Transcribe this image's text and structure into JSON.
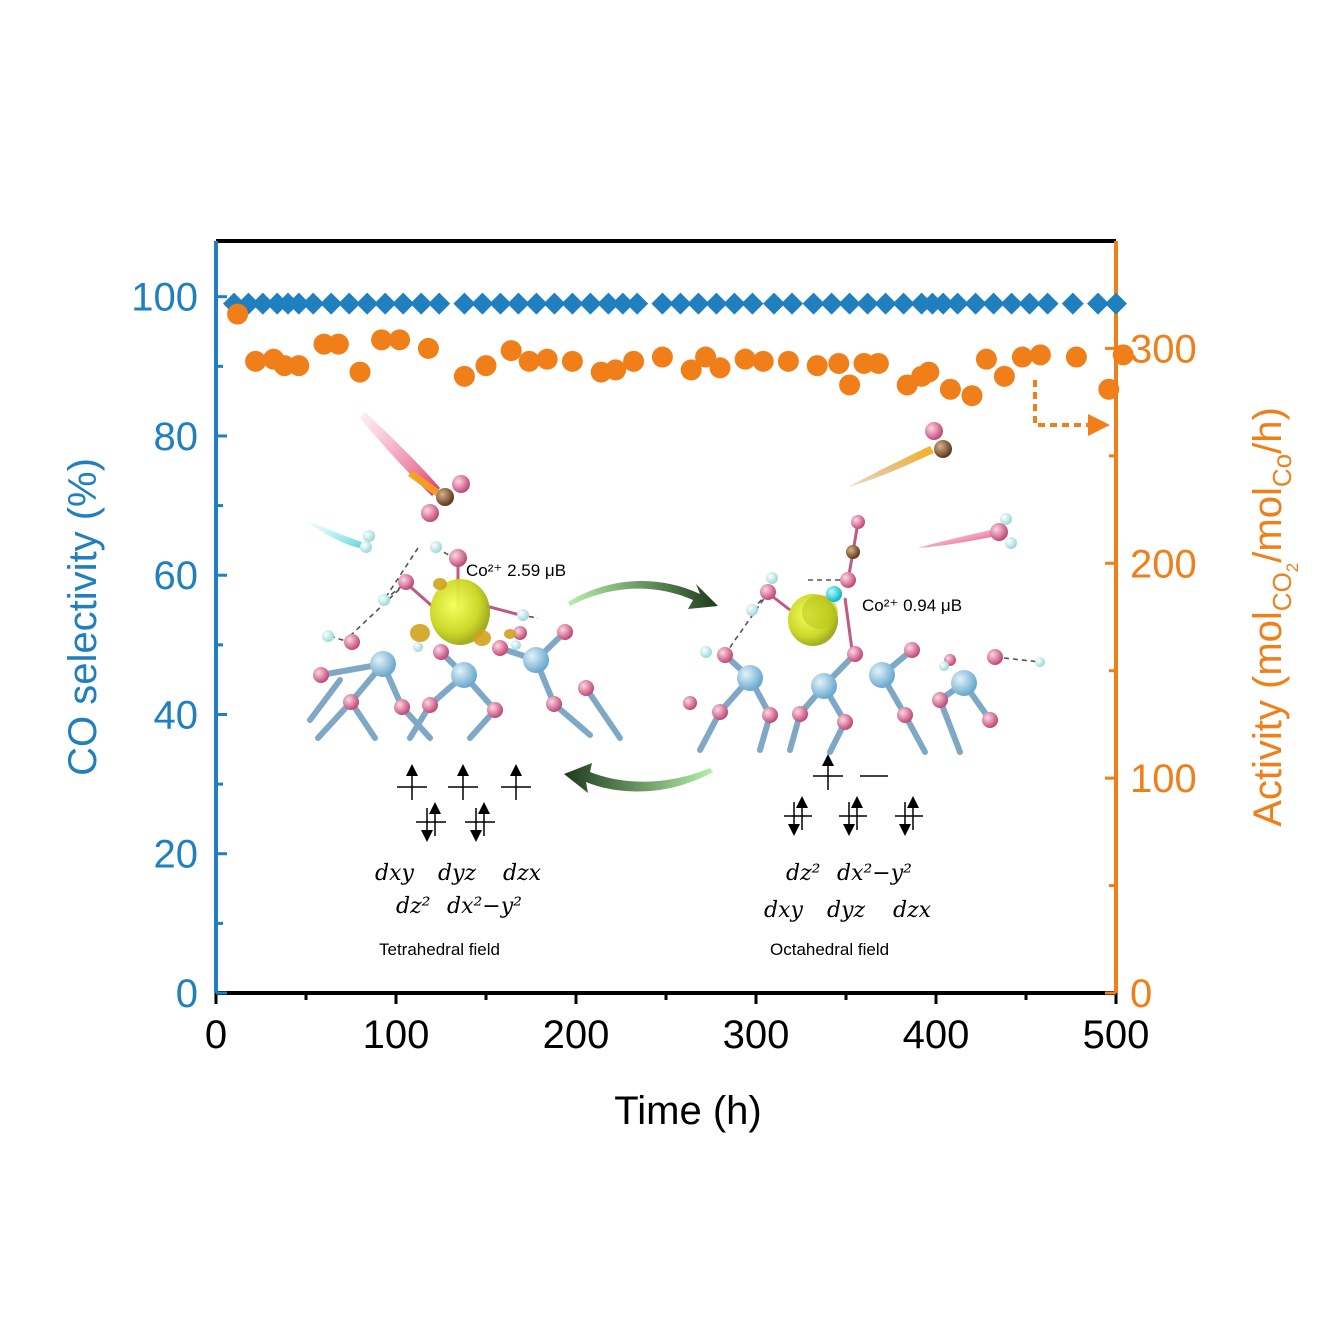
{
  "chart_data": {
    "type": "scatter",
    "xlabel": "Time (h)",
    "ylabel_left": "CO selectivity (%)",
    "ylabel_right_parts": [
      "Activity (mol",
      "CO",
      "2",
      "/mol",
      "Co",
      "/h)"
    ],
    "xlim": [
      0,
      500
    ],
    "ylim_left": [
      0,
      108
    ],
    "ylim_right": [
      0,
      350
    ],
    "x_ticks": [
      "0",
      "100",
      "200",
      "300",
      "400",
      "500"
    ],
    "y_ticks_left": [
      "0",
      "20",
      "40",
      "60",
      "80",
      "100"
    ],
    "y_ticks_right": [
      "0",
      "100",
      "200",
      "300"
    ],
    "series": [
      {
        "axis": "left",
        "marker": "diamond",
        "color": "#1f7fbf",
        "x": [
          10,
          18,
          26,
          34,
          40,
          46,
          54,
          64,
          74,
          84,
          94,
          104,
          114,
          124,
          138,
          148,
          158,
          168,
          178,
          188,
          198,
          208,
          218,
          226,
          234,
          248,
          258,
          268,
          278,
          288,
          298,
          310,
          320,
          332,
          342,
          352,
          362,
          372,
          382,
          392,
          398,
          404,
          412,
          422,
          432,
          442,
          452,
          462,
          476,
          490,
          500
        ],
        "y": [
          99,
          99,
          99,
          99,
          99,
          99,
          99,
          99,
          99,
          99,
          99,
          99,
          99,
          99,
          99,
          99,
          99,
          99,
          99,
          99,
          99,
          99,
          99,
          99,
          99,
          99,
          99,
          99,
          99,
          99,
          99,
          99,
          99,
          99,
          99,
          99,
          99,
          99,
          99,
          99,
          99,
          99,
          99,
          99,
          99,
          99,
          99,
          99,
          99,
          99,
          99
        ]
      },
      {
        "axis": "right",
        "marker": "circle",
        "color": "#f07f1a",
        "x": [
          12,
          22,
          32,
          38,
          46,
          60,
          68,
          80,
          92,
          102,
          118,
          138,
          150,
          164,
          174,
          184,
          198,
          214,
          222,
          232,
          248,
          264,
          272,
          280,
          294,
          304,
          318,
          334,
          346,
          352,
          360,
          368,
          384,
          392,
          396,
          408,
          420,
          428,
          438,
          448,
          458,
          478,
          496,
          504
        ],
        "y": [
          316,
          294,
          295,
          292,
          292,
          302,
          302,
          289,
          304,
          304,
          300,
          287,
          292,
          299,
          294,
          295,
          294,
          289,
          290,
          294,
          296,
          290,
          296,
          291,
          295,
          294,
          294,
          292,
          293,
          283,
          293,
          293,
          283,
          287,
          289,
          281,
          278,
          295,
          287,
          296,
          297,
          296,
          281,
          297
        ]
      }
    ],
    "annotations": {
      "tetra_moment": "Co²⁺ 2.59 μB",
      "octa_moment": "Co²⁺ 0.94 μB",
      "tetra_upper_orbitals": [
        "dxy",
        "dyz",
        "dzx"
      ],
      "tetra_lower_orbitals": [
        "dz²",
        "dx²−y²"
      ],
      "tetra_caption": "Tetrahedral field",
      "octa_upper_orbitals": [
        "dz²",
        "dx²−y²"
      ],
      "octa_lower_orbitals": [
        "dxy",
        "dyz",
        "dzx"
      ],
      "octa_caption": "Octahedral field"
    }
  }
}
